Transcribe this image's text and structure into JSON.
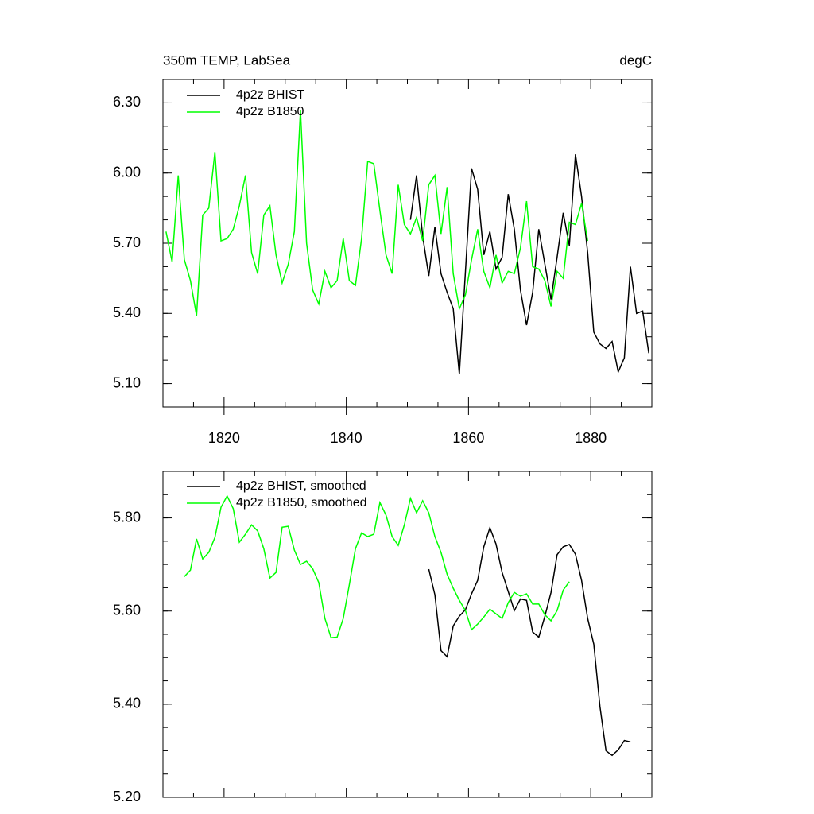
{
  "chart_data": [
    {
      "type": "line",
      "title": "350m TEMP, LabSea",
      "units_label": "degC",
      "xlim": [
        1810,
        1890
      ],
      "xticks": [
        1820,
        1840,
        1860,
        1880
      ],
      "ylim": [
        5.0,
        6.4
      ],
      "yticks": [
        {
          "value": 5.1,
          "label": "5.10"
        },
        {
          "value": 5.4,
          "label": "5.40"
        },
        {
          "value": 5.7,
          "label": "5.70"
        },
        {
          "value": 6.0,
          "label": "6.00"
        },
        {
          "value": 6.3,
          "label": "6.30"
        }
      ],
      "series": [
        {
          "name": "4p2z BHIST",
          "color": "#000000",
          "x": [
            1850.5,
            1851.5,
            1852.5,
            1853.5,
            1854.5,
            1855.5,
            1856.5,
            1857.5,
            1858.5,
            1859.5,
            1860.5,
            1861.5,
            1862.5,
            1863.5,
            1864.5,
            1865.5,
            1866.5,
            1867.5,
            1868.5,
            1869.5,
            1870.5,
            1871.5,
            1872.5,
            1873.5,
            1874.5,
            1875.5,
            1876.5,
            1877.5,
            1878.5,
            1879.5,
            1880.5,
            1881.5,
            1882.5,
            1883.5,
            1884.5,
            1885.5,
            1886.5,
            1887.5,
            1888.5,
            1889.5
          ],
          "values": [
            5.8,
            5.99,
            5.73,
            5.56,
            5.77,
            5.57,
            5.49,
            5.42,
            5.14,
            5.58,
            6.02,
            5.93,
            5.65,
            5.75,
            5.59,
            5.64,
            5.91,
            5.76,
            5.5,
            5.35,
            5.49,
            5.76,
            5.61,
            5.46,
            5.64,
            5.83,
            5.69,
            6.08,
            5.9,
            5.66,
            5.32,
            5.27,
            5.25,
            5.28,
            5.15,
            5.21,
            5.6,
            5.4,
            5.41,
            5.23
          ]
        },
        {
          "name": "4p2z B1850",
          "color": "#00ff00",
          "x": [
            1810.5,
            1811.5,
            1812.5,
            1813.5,
            1814.5,
            1815.5,
            1816.5,
            1817.5,
            1818.5,
            1819.5,
            1820.5,
            1821.5,
            1822.5,
            1823.5,
            1824.5,
            1825.5,
            1826.5,
            1827.5,
            1828.5,
            1829.5,
            1830.5,
            1831.5,
            1832.5,
            1833.5,
            1834.5,
            1835.5,
            1836.5,
            1837.5,
            1838.5,
            1839.5,
            1840.5,
            1841.5,
            1842.5,
            1843.5,
            1844.5,
            1845.5,
            1846.5,
            1847.5,
            1848.5,
            1849.5,
            1850.5,
            1851.5,
            1852.5,
            1853.5,
            1854.5,
            1855.5,
            1856.5,
            1857.5,
            1858.5,
            1859.5,
            1860.5,
            1861.5,
            1862.5,
            1863.5,
            1864.5,
            1865.5,
            1866.5,
            1867.5,
            1868.5,
            1869.5,
            1870.5,
            1871.5,
            1872.5,
            1873.5,
            1874.5,
            1875.5,
            1876.5,
            1877.5,
            1878.5,
            1879.5
          ],
          "values": [
            5.75,
            5.62,
            5.99,
            5.63,
            5.54,
            5.39,
            5.82,
            5.85,
            6.09,
            5.71,
            5.72,
            5.76,
            5.86,
            5.99,
            5.66,
            5.57,
            5.82,
            5.86,
            5.65,
            5.53,
            5.61,
            5.75,
            6.27,
            5.7,
            5.5,
            5.44,
            5.58,
            5.51,
            5.54,
            5.72,
            5.54,
            5.52,
            5.72,
            6.05,
            6.04,
            5.84,
            5.65,
            5.57,
            5.95,
            5.78,
            5.74,
            5.81,
            5.71,
            5.95,
            5.99,
            5.74,
            5.94,
            5.57,
            5.42,
            5.48,
            5.63,
            5.76,
            5.58,
            5.51,
            5.65,
            5.53,
            5.58,
            5.57,
            5.68,
            5.88,
            5.6,
            5.59,
            5.54,
            5.43,
            5.58,
            5.55,
            5.79,
            5.78,
            5.87,
            5.71
          ]
        }
      ]
    },
    {
      "type": "line",
      "xlim": [
        1810,
        1890
      ],
      "ylim": [
        5.2,
        5.9
      ],
      "yticks": [
        {
          "value": 5.2,
          "label": "5.20"
        },
        {
          "value": 5.4,
          "label": "5.40"
        },
        {
          "value": 5.6,
          "label": "5.60"
        },
        {
          "value": 5.8,
          "label": "5.80"
        }
      ],
      "series": [
        {
          "name": "4p2z BHIST, smoothed",
          "color": "#000000",
          "x": [
            1853.5,
            1854.5,
            1855.5,
            1856.5,
            1857.5,
            1858.5,
            1859.5,
            1860.5,
            1861.5,
            1862.5,
            1863.5,
            1864.5,
            1865.5,
            1866.5,
            1867.5,
            1868.5,
            1869.5,
            1870.5,
            1871.5,
            1872.5,
            1873.5,
            1874.5,
            1875.5,
            1876.5,
            1877.5,
            1878.5,
            1879.5,
            1880.5,
            1881.5,
            1882.5,
            1883.5,
            1884.5,
            1885.5,
            1886.5
          ],
          "values": [
            5.69,
            5.635,
            5.515,
            5.502,
            5.568,
            5.589,
            5.603,
            5.637,
            5.666,
            5.738,
            5.779,
            5.744,
            5.683,
            5.642,
            5.601,
            5.626,
            5.623,
            5.555,
            5.544,
            5.589,
            5.64,
            5.721,
            5.738,
            5.743,
            5.722,
            5.666,
            5.584,
            5.529,
            5.396,
            5.3,
            5.29,
            5.302,
            5.322,
            5.319
          ]
        },
        {
          "name": "4p2z B1850, smoothed",
          "color": "#00ff00",
          "x": [
            1813.5,
            1814.5,
            1815.5,
            1816.5,
            1817.5,
            1818.5,
            1819.5,
            1820.5,
            1821.5,
            1822.5,
            1823.5,
            1824.5,
            1825.5,
            1826.5,
            1827.5,
            1828.5,
            1829.5,
            1830.5,
            1831.5,
            1832.5,
            1833.5,
            1834.5,
            1835.5,
            1836.5,
            1837.5,
            1838.5,
            1839.5,
            1840.5,
            1841.5,
            1842.5,
            1843.5,
            1844.5,
            1845.5,
            1846.5,
            1847.5,
            1848.5,
            1849.5,
            1850.5,
            1851.5,
            1852.5,
            1853.5,
            1854.5,
            1855.5,
            1856.5,
            1857.5,
            1858.5,
            1859.5,
            1860.5,
            1861.5,
            1862.5,
            1863.5,
            1864.5,
            1865.5,
            1866.5,
            1867.5,
            1868.5,
            1869.5,
            1870.5,
            1871.5,
            1872.5,
            1873.5,
            1874.5,
            1875.5,
            1876.5
          ],
          "values": [
            5.674,
            5.688,
            5.755,
            5.712,
            5.726,
            5.758,
            5.823,
            5.847,
            5.82,
            5.748,
            5.765,
            5.785,
            5.772,
            5.734,
            5.671,
            5.683,
            5.78,
            5.782,
            5.731,
            5.7,
            5.707,
            5.691,
            5.661,
            5.584,
            5.543,
            5.544,
            5.584,
            5.657,
            5.734,
            5.768,
            5.76,
            5.765,
            5.833,
            5.806,
            5.76,
            5.741,
            5.785,
            5.842,
            5.811,
            5.837,
            5.811,
            5.76,
            5.726,
            5.679,
            5.649,
            5.623,
            5.601,
            5.56,
            5.572,
            5.587,
            5.604,
            5.594,
            5.584,
            5.618,
            5.64,
            5.632,
            5.637,
            5.615,
            5.615,
            5.592,
            5.579,
            5.601,
            5.645,
            5.663
          ]
        }
      ]
    }
  ]
}
